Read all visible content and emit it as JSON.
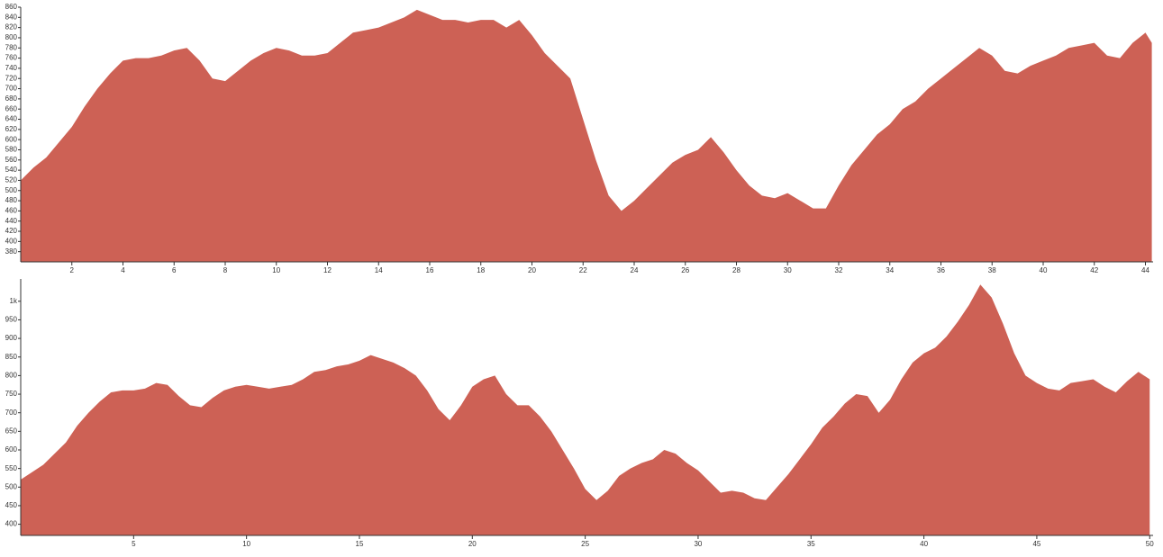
{
  "chart_data": [
    {
      "type": "area",
      "color": "#cd6155",
      "grid": false,
      "x": [
        0,
        0.5,
        1,
        1.5,
        2,
        2.5,
        3,
        3.5,
        4,
        4.5,
        5,
        5.5,
        6,
        6.5,
        7,
        7.5,
        8,
        8.5,
        9,
        9.5,
        10,
        10.5,
        11,
        11.5,
        12,
        12.5,
        13,
        13.5,
        14,
        14.5,
        15,
        15.5,
        16,
        16.5,
        17,
        17.5,
        18,
        18.5,
        19,
        19.5,
        20,
        20.5,
        21,
        21.5,
        22,
        22.5,
        23,
        23.5,
        24,
        24.5,
        25,
        25.5,
        26,
        26.5,
        27,
        27.5,
        28,
        28.5,
        29,
        29.5,
        30,
        30.5,
        31,
        31.5,
        32,
        32.5,
        33,
        33.5,
        34,
        34.5,
        35,
        35.5,
        36,
        36.5,
        37,
        37.5,
        38,
        38.5,
        39,
        39.5,
        40,
        40.5,
        41,
        41.5,
        42,
        42.5,
        43,
        43.5,
        44,
        44.25
      ],
      "values": [
        520,
        545,
        565,
        595,
        625,
        665,
        700,
        730,
        755,
        760,
        760,
        765,
        775,
        780,
        755,
        720,
        715,
        735,
        755,
        770,
        780,
        775,
        765,
        765,
        770,
        790,
        810,
        815,
        820,
        830,
        840,
        855,
        845,
        835,
        835,
        830,
        835,
        835,
        820,
        835,
        805,
        770,
        745,
        720,
        640,
        560,
        490,
        460,
        480,
        505,
        530,
        555,
        570,
        580,
        605,
        575,
        540,
        510,
        490,
        485,
        495,
        480,
        465,
        465,
        510,
        550,
        580,
        610,
        630,
        660,
        675,
        700,
        720,
        740,
        760,
        780,
        765,
        735,
        730,
        745,
        755,
        765,
        780,
        785,
        790,
        765,
        760,
        790,
        810,
        790
      ],
      "xlim": [
        0,
        44.3
      ],
      "ylim": [
        360,
        860
      ],
      "xticks": [
        2,
        4,
        6,
        8,
        10,
        12,
        14,
        16,
        18,
        20,
        22,
        24,
        26,
        28,
        30,
        32,
        34,
        36,
        38,
        40,
        42,
        44
      ],
      "yticks": [
        380,
        400,
        420,
        440,
        460,
        480,
        500,
        520,
        540,
        560,
        580,
        600,
        620,
        640,
        660,
        680,
        700,
        720,
        740,
        760,
        780,
        800,
        820,
        840,
        860
      ]
    },
    {
      "type": "area",
      "color": "#cd6155",
      "grid": false,
      "x": [
        0,
        0.5,
        1,
        1.5,
        2,
        2.5,
        3,
        3.5,
        4,
        4.5,
        5,
        5.5,
        6,
        6.5,
        7,
        7.5,
        8,
        8.5,
        9,
        9.5,
        10,
        10.5,
        11,
        11.5,
        12,
        12.5,
        13,
        13.5,
        14,
        14.5,
        15,
        15.5,
        16,
        16.5,
        17,
        17.5,
        18,
        18.5,
        19,
        19.5,
        20,
        20.5,
        21,
        21.5,
        22,
        22.5,
        23,
        23.5,
        24,
        24.5,
        25,
        25.5,
        26,
        26.5,
        27,
        27.5,
        28,
        28.5,
        29,
        29.5,
        30,
        30.5,
        31,
        31.5,
        32,
        32.5,
        33,
        33.5,
        34,
        34.5,
        35,
        35.5,
        36,
        36.5,
        37,
        37.5,
        38,
        38.5,
        39,
        39.5,
        40,
        40.5,
        41,
        41.5,
        42,
        42.5,
        43,
        43.5,
        44,
        44.5,
        45,
        45.5,
        46,
        46.5,
        47,
        47.5,
        48,
        48.5,
        49,
        49.5,
        50
      ],
      "values": [
        520,
        540,
        560,
        590,
        620,
        665,
        700,
        730,
        755,
        760,
        760,
        765,
        780,
        775,
        745,
        720,
        715,
        740,
        760,
        770,
        775,
        770,
        765,
        770,
        775,
        790,
        810,
        815,
        825,
        830,
        840,
        855,
        845,
        835,
        820,
        800,
        760,
        710,
        680,
        720,
        770,
        790,
        800,
        750,
        720,
        720,
        690,
        650,
        600,
        550,
        495,
        465,
        490,
        530,
        550,
        565,
        575,
        600,
        590,
        565,
        545,
        515,
        485,
        490,
        485,
        470,
        465,
        500,
        535,
        575,
        615,
        660,
        690,
        725,
        750,
        745,
        700,
        735,
        790,
        835,
        860,
        875,
        905,
        945,
        990,
        1045,
        1010,
        940,
        860,
        800,
        780,
        765,
        760,
        780,
        785,
        790,
        770,
        755,
        785,
        810,
        790
      ],
      "xlim": [
        0,
        50.15
      ],
      "ylim": [
        370,
        1060
      ],
      "xticks": [
        5,
        10,
        15,
        20,
        25,
        30,
        35,
        40,
        45,
        50
      ],
      "yticks": [
        400,
        450,
        500,
        550,
        600,
        650,
        700,
        750,
        800,
        850,
        900,
        950,
        {
          "value": 1000,
          "label": "1k"
        }
      ]
    }
  ]
}
